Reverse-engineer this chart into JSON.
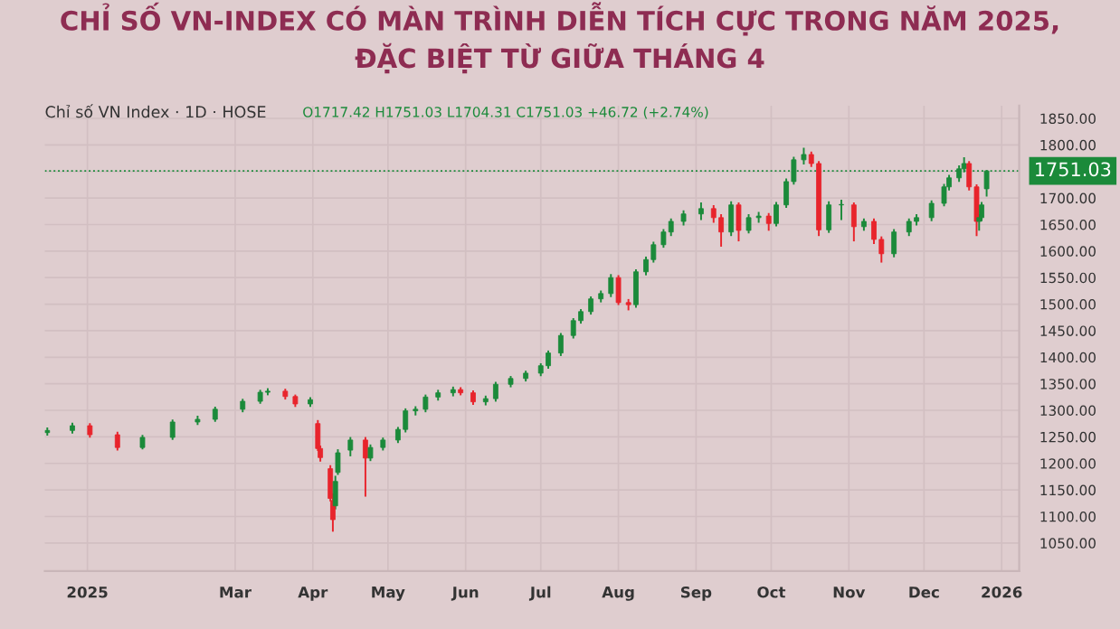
{
  "chart_data": {
    "type": "candlestick",
    "title": "CHỈ SỐ VN-INDEX CÓ MÀN TRÌNH DIỄN TÍCH CỰC TRONG NĂM 2025,\nĐẶC BIỆT TỪ GIỮA THÁNG 4",
    "annotations": [
      "Chỉ số VN Index · 1D · HOSE",
      "O1717.42 H1751.03 L1704.31 C1751.03 +46.72 (+2.74%)"
    ],
    "x": [
      "2024-12-16",
      "2024-12-26",
      "2025-01-02",
      "2025-01-13",
      "2025-01-23",
      "2025-02-04",
      "2025-02-14",
      "2025-02-21",
      "2025-03-04",
      "2025-03-11",
      "2025-03-14",
      "2025-03-21",
      "2025-03-25",
      "2025-03-31",
      "2025-04-03",
      "2025-04-04",
      "2025-04-08",
      "2025-04-09",
      "2025-04-10",
      "2025-04-11",
      "2025-04-16",
      "2025-04-22",
      "2025-04-24",
      "2025-04-29",
      "2025-05-05",
      "2025-05-08",
      "2025-05-12",
      "2025-05-16",
      "2025-05-21",
      "2025-05-27",
      "2025-05-30",
      "2025-06-04",
      "2025-06-09",
      "2025-06-13",
      "2025-06-19",
      "2025-06-25",
      "2025-07-01",
      "2025-07-04",
      "2025-07-09",
      "2025-07-14",
      "2025-07-17",
      "2025-07-21",
      "2025-07-25",
      "2025-07-29",
      "2025-08-01",
      "2025-08-05",
      "2025-08-08",
      "2025-08-12",
      "2025-08-15",
      "2025-08-19",
      "2025-08-22",
      "2025-08-27",
      "2025-09-03",
      "2025-09-08",
      "2025-09-11",
      "2025-09-15",
      "2025-09-18",
      "2025-09-22",
      "2025-09-26",
      "2025-09-30",
      "2025-10-03",
      "2025-10-07",
      "2025-10-10",
      "2025-10-14",
      "2025-10-17",
      "2025-10-20",
      "2025-10-24",
      "2025-10-29",
      "2025-11-03",
      "2025-11-07",
      "2025-11-11",
      "2025-11-14",
      "2025-11-19",
      "2025-11-25",
      "2025-11-28",
      "2025-12-04",
      "2025-12-09",
      "2025-12-11",
      "2025-12-15",
      "2025-12-17",
      "2025-12-19",
      "2025-12-22",
      "2025-12-23",
      "2025-12-24",
      "2025-12-26"
    ],
    "ohlc": [
      [
        1258,
        1266,
        1254,
        1262
      ],
      [
        1262,
        1275,
        1258,
        1271
      ],
      [
        1271,
        1274,
        1250,
        1254
      ],
      [
        1254,
        1258,
        1226,
        1230
      ],
      [
        1230,
        1252,
        1228,
        1249
      ],
      [
        1249,
        1281,
        1246,
        1278
      ],
      [
        1278,
        1288,
        1274,
        1283
      ],
      [
        1283,
        1305,
        1280,
        1302
      ],
      [
        1302,
        1320,
        1298,
        1317
      ],
      [
        1317,
        1337,
        1314,
        1334
      ],
      [
        1334,
        1340,
        1330,
        1336
      ],
      [
        1336,
        1339,
        1322,
        1326
      ],
      [
        1326,
        1328,
        1308,
        1312
      ],
      [
        1312,
        1323,
        1308,
        1320
      ],
      [
        1275,
        1280,
        1225,
        1228
      ],
      [
        1228,
        1232,
        1205,
        1211
      ],
      [
        1190,
        1195,
        1130,
        1134
      ],
      [
        1130,
        1142,
        1073,
        1094
      ],
      [
        1120,
        1175,
        1115,
        1166
      ],
      [
        1183,
        1225,
        1180,
        1220
      ],
      [
        1225,
        1248,
        1215,
        1244
      ],
      [
        1244,
        1248,
        1139,
        1210
      ],
      [
        1210,
        1234,
        1206,
        1230
      ],
      [
        1230,
        1247,
        1226,
        1244
      ],
      [
        1244,
        1267,
        1240,
        1264
      ],
      [
        1264,
        1302,
        1260,
        1299
      ],
      [
        1299,
        1306,
        1292,
        1302
      ],
      [
        1302,
        1328,
        1298,
        1325
      ],
      [
        1325,
        1337,
        1320,
        1333
      ],
      [
        1333,
        1343,
        1328,
        1339
      ],
      [
        1339,
        1342,
        1330,
        1333
      ],
      [
        1333,
        1336,
        1312,
        1316
      ],
      [
        1316,
        1326,
        1311,
        1322
      ],
      [
        1322,
        1352,
        1318,
        1349
      ],
      [
        1349,
        1363,
        1345,
        1360
      ],
      [
        1360,
        1373,
        1356,
        1370
      ],
      [
        1370,
        1387,
        1366,
        1384
      ],
      [
        1384,
        1411,
        1380,
        1408
      ],
      [
        1408,
        1444,
        1404,
        1441
      ],
      [
        1441,
        1472,
        1437,
        1469
      ],
      [
        1469,
        1489,
        1465,
        1486
      ],
      [
        1486,
        1513,
        1482,
        1510
      ],
      [
        1510,
        1524,
        1505,
        1520
      ],
      [
        1520,
        1555,
        1515,
        1550
      ],
      [
        1550,
        1553,
        1500,
        1503
      ],
      [
        1503,
        1508,
        1490,
        1499
      ],
      [
        1499,
        1564,
        1495,
        1561
      ],
      [
        1561,
        1588,
        1556,
        1584
      ],
      [
        1584,
        1616,
        1580,
        1612
      ],
      [
        1612,
        1640,
        1608,
        1636
      ],
      [
        1636,
        1660,
        1630,
        1656
      ],
      [
        1656,
        1675,
        1650,
        1670
      ],
      [
        1670,
        1690,
        1660,
        1680
      ],
      [
        1680,
        1685,
        1655,
        1663
      ],
      [
        1663,
        1668,
        1610,
        1636
      ],
      [
        1636,
        1692,
        1630,
        1687
      ],
      [
        1687,
        1690,
        1620,
        1639
      ],
      [
        1639,
        1668,
        1635,
        1663
      ],
      [
        1663,
        1672,
        1655,
        1666
      ],
      [
        1666,
        1670,
        1640,
        1652
      ],
      [
        1652,
        1691,
        1648,
        1687
      ],
      [
        1687,
        1735,
        1683,
        1731
      ],
      [
        1731,
        1776,
        1727,
        1772
      ],
      [
        1772,
        1793,
        1765,
        1782
      ],
      [
        1782,
        1786,
        1760,
        1765
      ],
      [
        1765,
        1768,
        1630,
        1640
      ],
      [
        1640,
        1692,
        1636,
        1687
      ],
      [
        1687,
        1695,
        1660,
        1687
      ],
      [
        1687,
        1690,
        1620,
        1646
      ],
      [
        1646,
        1660,
        1640,
        1656
      ],
      [
        1656,
        1660,
        1615,
        1622
      ],
      [
        1622,
        1626,
        1580,
        1595
      ],
      [
        1595,
        1640,
        1590,
        1636
      ],
      [
        1636,
        1660,
        1630,
        1656
      ],
      [
        1656,
        1668,
        1650,
        1663
      ],
      [
        1663,
        1694,
        1658,
        1690
      ],
      [
        1690,
        1725,
        1686,
        1721
      ],
      [
        1721,
        1742,
        1716,
        1738
      ],
      [
        1738,
        1760,
        1732,
        1755
      ],
      [
        1755,
        1775,
        1750,
        1765
      ],
      [
        1765,
        1768,
        1716,
        1721
      ],
      [
        1721,
        1724,
        1630,
        1656
      ],
      [
        1656,
        1668,
        1640,
        1663
      ],
      [
        1663,
        1691,
        1658,
        1687
      ],
      [
        1717.42,
        1751.03,
        1704.31,
        1751.03
      ]
    ],
    "colors": [
      "#1b8a3a",
      "#1b8a3a",
      "#e8242c",
      "#e8242c",
      "#1b8a3a",
      "#1b8a3a",
      "#1b8a3a",
      "#1b8a3a",
      "#1b8a3a",
      "#1b8a3a",
      "#1b8a3a",
      "#e8242c",
      "#e8242c",
      "#1b8a3a",
      "#e8242c",
      "#e8242c",
      "#e8242c",
      "#e8242c",
      "#1b8a3a",
      "#1b8a3a",
      "#1b8a3a",
      "#e8242c",
      "#1b8a3a",
      "#1b8a3a",
      "#1b8a3a",
      "#1b8a3a",
      "#1b8a3a",
      "#1b8a3a",
      "#1b8a3a",
      "#1b8a3a",
      "#e8242c",
      "#e8242c",
      "#1b8a3a",
      "#1b8a3a",
      "#1b8a3a",
      "#1b8a3a",
      "#1b8a3a",
      "#1b8a3a",
      "#1b8a3a",
      "#1b8a3a",
      "#1b8a3a",
      "#1b8a3a",
      "#1b8a3a",
      "#1b8a3a",
      "#e8242c",
      "#e8242c",
      "#1b8a3a",
      "#1b8a3a",
      "#1b8a3a",
      "#1b8a3a",
      "#1b8a3a",
      "#1b8a3a",
      "#1b8a3a",
      "#e8242c",
      "#e8242c",
      "#1b8a3a",
      "#e8242c",
      "#1b8a3a",
      "#1b8a3a",
      "#e8242c",
      "#1b8a3a",
      "#1b8a3a",
      "#1b8a3a",
      "#1b8a3a",
      "#e8242c",
      "#e8242c",
      "#1b8a3a",
      "#1b8a3a",
      "#e8242c",
      "#1b8a3a",
      "#e8242c",
      "#e8242c",
      "#1b8a3a",
      "#1b8a3a",
      "#1b8a3a",
      "#1b8a3a",
      "#1b8a3a",
      "#1b8a3a",
      "#1b8a3a",
      "#1b8a3a",
      "#e8242c",
      "#e8242c",
      "#1b8a3a",
      "#1b8a3a",
      "#1b8a3a"
    ],
    "xlim": [
      "2024-12-15",
      "2026-01-08"
    ],
    "xticks": [
      {
        "value": "2025-01-01",
        "label": "2025"
      },
      {
        "value": "2025-03-01",
        "label": "Mar"
      },
      {
        "value": "2025-04-01",
        "label": "Apr"
      },
      {
        "value": "2025-05-01",
        "label": "May"
      },
      {
        "value": "2025-06-01",
        "label": "Jun"
      },
      {
        "value": "2025-07-01",
        "label": "Jul"
      },
      {
        "value": "2025-08-01",
        "label": "Aug"
      },
      {
        "value": "2025-09-01",
        "label": "Sep"
      },
      {
        "value": "2025-10-01",
        "label": "Oct"
      },
      {
        "value": "2025-11-01",
        "label": "Nov"
      },
      {
        "value": "2025-12-01",
        "label": "Dec"
      },
      {
        "value": "2026-01-01",
        "label": "2026"
      }
    ],
    "ylim": [
      997,
      1874
    ],
    "yticks": [
      {
        "value": 1050,
        "label": "1050.00"
      },
      {
        "value": 1100,
        "label": "1100.00"
      },
      {
        "value": 1150,
        "label": "1150.00"
      },
      {
        "value": 1200,
        "label": "1200.00"
      },
      {
        "value": 1250,
        "label": "1250.00"
      },
      {
        "value": 1300,
        "label": "1300.00"
      },
      {
        "value": 1350,
        "label": "1350.00"
      },
      {
        "value": 1400,
        "label": "1400.00"
      },
      {
        "value": 1450,
        "label": "1450.00"
      },
      {
        "value": 1500,
        "label": "1500.00"
      },
      {
        "value": 1550,
        "label": "1550.00"
      },
      {
        "value": 1600,
        "label": "1600.00"
      },
      {
        "value": 1650,
        "label": "1650.00"
      },
      {
        "value": 1700,
        "label": "1700.00"
      },
      {
        "value": 1750,
        "label": null
      },
      {
        "value": 1800,
        "label": "1800.00"
      },
      {
        "value": 1850,
        "label": "1850.00"
      }
    ],
    "ref_lines": [
      {
        "axis": "y",
        "value": 1751.03,
        "label": "1751.03",
        "color": "#1b8a3a",
        "line_style": "dotted"
      }
    ],
    "grid": true
  }
}
